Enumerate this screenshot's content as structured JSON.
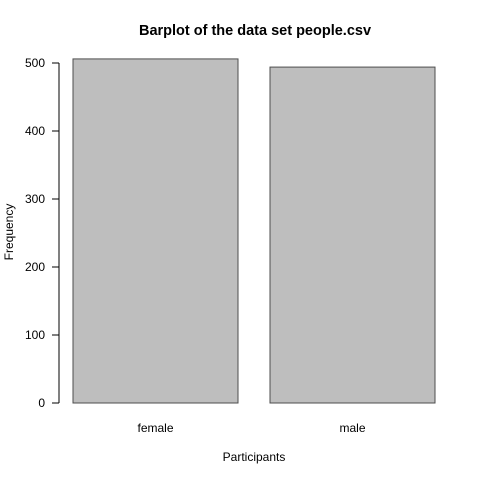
{
  "chart_data": {
    "type": "bar",
    "title": "Barplot of the data set people.csv",
    "xlabel": "Participants",
    "ylabel": "Frequency",
    "categories": [
      "female",
      "male"
    ],
    "values": [
      506,
      494
    ],
    "ylim": [
      0,
      500
    ],
    "yticks": [
      0,
      100,
      200,
      300,
      400,
      500
    ],
    "grid": false,
    "legend": "none",
    "colors": {
      "bar_fill": "#bebebe",
      "bar_stroke": "#4d4d4d",
      "axis": "#000000"
    }
  }
}
